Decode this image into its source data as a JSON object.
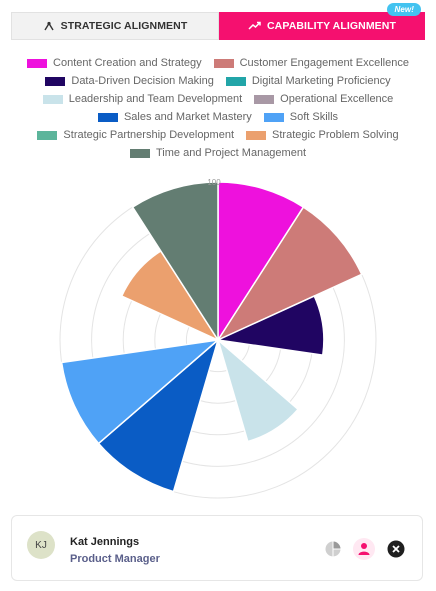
{
  "tabs": {
    "strategic_label": "STRATEGIC ALIGNMENT",
    "capability_label": "CAPABILITY ALIGNMENT",
    "new_badge": "New!"
  },
  "chart_data": {
    "type": "polar-area",
    "radial_tick_label": "100",
    "categories": [
      "Content Creation and Strategy",
      "Customer Engagement Excellence",
      "Data-Driven Decision Making",
      "Digital Marketing Proficiency",
      "Leadership and Team Development",
      "Operational Excellence",
      "Sales and Market Mastery",
      "Soft Skills",
      "Strategic Partnership Development",
      "Strategic Problem Solving",
      "Time and Project Management"
    ],
    "values": [
      100,
      100,
      67,
      0,
      67,
      0,
      100,
      100,
      0,
      67,
      100
    ],
    "colors": [
      "#ee11dd",
      "#cd7b78",
      "#200562",
      "#22a5a8",
      "#c9e3ea",
      "#a898a5",
      "#0a5cc5",
      "#4fa2f6",
      "#5cb59b",
      "#eba06e",
      "#637d72"
    ],
    "rmax": 100,
    "grid_rings": 5
  },
  "user": {
    "initials": "KJ",
    "name": "Kat Jennings",
    "role": "Product Manager"
  },
  "icons": {
    "strategic_tab": "network-icon",
    "capability_tab": "trend-up-icon",
    "analytics": "pie-chart-icon",
    "profile": "user-icon",
    "close": "close-circle-icon"
  }
}
